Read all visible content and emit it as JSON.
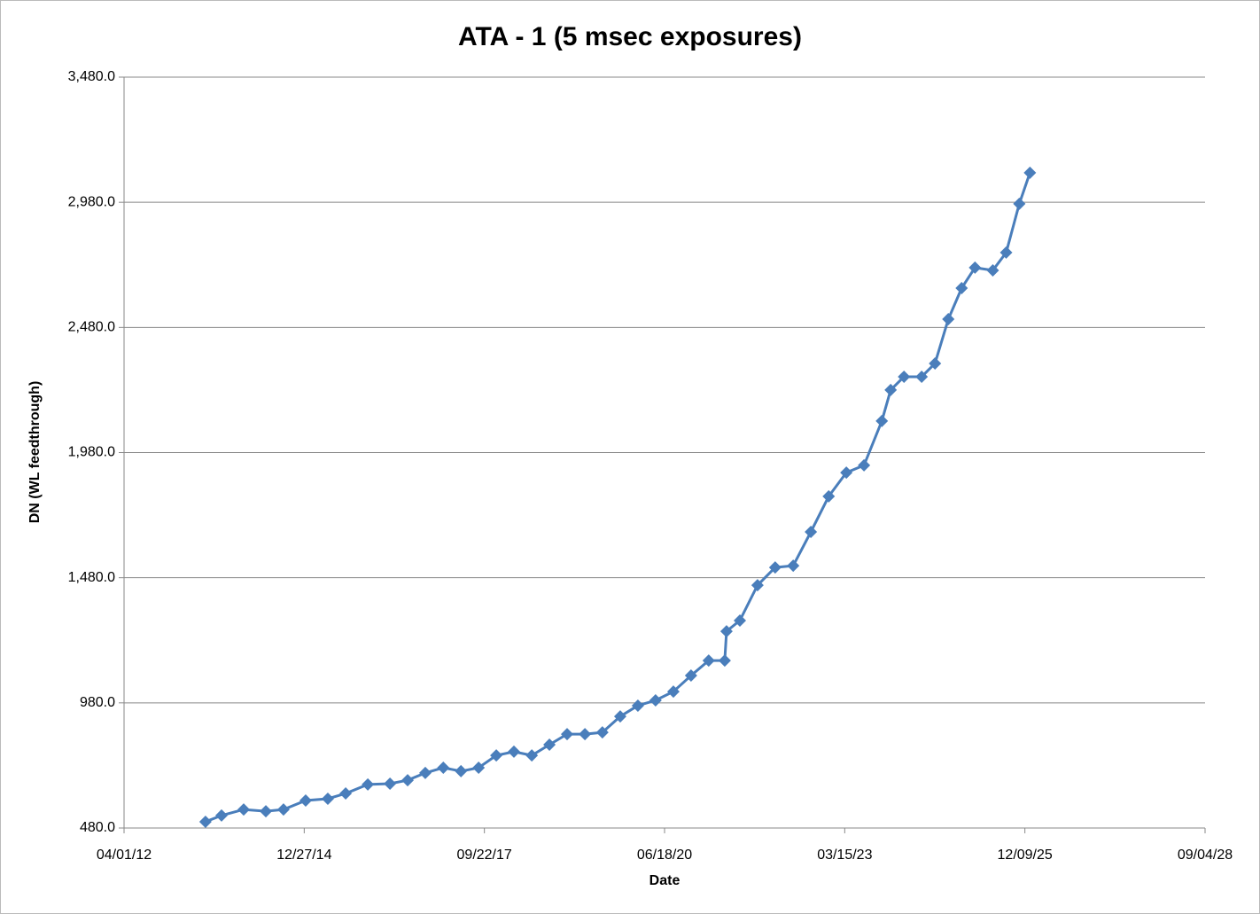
{
  "chart_data": {
    "type": "line",
    "title": "ATA - 1  (5 msec exposures)",
    "x_label": "Date",
    "y_label": "DN (WL feedthrough)",
    "x": [
      "2013-06-27",
      "2013-09-24",
      "2014-01-25",
      "2014-05-28",
      "2014-09-03",
      "2015-01-04",
      "2015-05-07",
      "2015-08-14",
      "2015-12-15",
      "2016-04-16",
      "2016-07-23",
      "2016-10-29",
      "2017-02-06",
      "2017-05-15",
      "2017-08-21",
      "2017-11-27",
      "2018-03-05",
      "2018-06-12",
      "2018-09-18",
      "2018-12-25",
      "2019-04-03",
      "2019-07-09",
      "2019-10-16",
      "2020-01-22",
      "2020-04-29",
      "2020-08-06",
      "2020-11-12",
      "2021-02-18",
      "2021-05-18",
      "2021-05-28",
      "2021-08-10",
      "2021-11-16",
      "2022-02-22",
      "2022-06-02",
      "2022-09-08",
      "2022-12-16",
      "2023-03-24",
      "2023-06-30",
      "2023-10-07",
      "2023-11-25",
      "2024-02-07",
      "2024-05-15",
      "2024-07-28",
      "2024-10-10",
      "2024-12-23",
      "2025-03-07",
      "2025-06-14",
      "2025-08-27",
      "2025-11-08",
      "2026-01-06"
    ],
    "values": [
      505,
      530,
      554,
      547,
      554,
      590,
      597,
      618,
      654,
      657,
      671,
      700,
      721,
      707,
      721,
      770,
      785,
      770,
      813,
      855,
      855,
      862,
      926,
      969,
      990,
      1025,
      1089,
      1149,
      1149,
      1266,
      1309,
      1450,
      1521,
      1528,
      1663,
      1805,
      1900,
      1929,
      2106,
      2230,
      2283,
      2283,
      2336,
      2513,
      2637,
      2719,
      2708,
      2779,
      2974,
      3098
    ],
    "color": "#4a7ebb",
    "xlim": [
      "2012-04-01",
      "2028-09-04"
    ],
    "xticks": [
      {
        "value": "2012-04-01",
        "label": "04/01/12"
      },
      {
        "value": "2014-12-27",
        "label": "12/27/14"
      },
      {
        "value": "2017-09-22",
        "label": "09/22/17"
      },
      {
        "value": "2020-06-18",
        "label": "06/18/20"
      },
      {
        "value": "2023-03-15",
        "label": "03/15/23"
      },
      {
        "value": "2025-12-09",
        "label": "12/09/25"
      },
      {
        "value": "2028-09-04",
        "label": "09/04/28"
      }
    ],
    "ylim": [
      480,
      3480
    ],
    "yticks": [
      {
        "value": 480,
        "label": "480.0"
      },
      {
        "value": 980,
        "label": "980.0"
      },
      {
        "value": 1480,
        "label": "1,480.0"
      },
      {
        "value": 1980,
        "label": "1,980.0"
      },
      {
        "value": 2480,
        "label": "2,480.0"
      },
      {
        "value": 2980,
        "label": "2,980.0"
      },
      {
        "value": 3480,
        "label": "3,480.0"
      }
    ],
    "grid": true
  }
}
